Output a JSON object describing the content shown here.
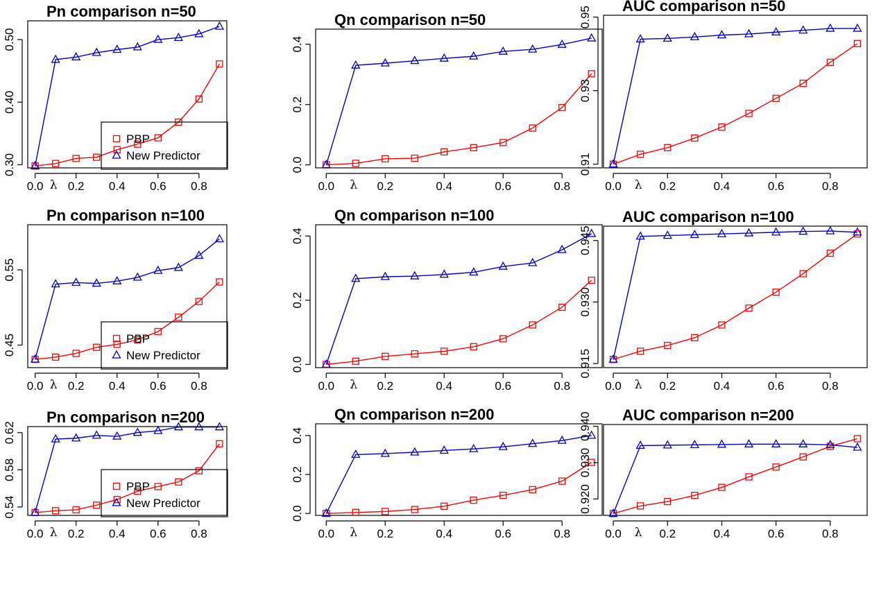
{
  "chart_data": [
    {
      "type": "line",
      "title": "Pn comparison n=50",
      "xlabel": "λ",
      "x": [
        0,
        0.1,
        0.2,
        0.3,
        0.4,
        0.5,
        0.6,
        0.7,
        0.8,
        0.9
      ],
      "ylim": [
        0.295,
        0.53
      ],
      "ytick_labels": [
        "0.30",
        "0.40",
        "0.50"
      ],
      "xtick_labels": [
        "0.0",
        "0.2",
        "0.4",
        "0.6",
        "0.8"
      ],
      "legend": true,
      "series": [
        {
          "name": "PBP",
          "values": [
            0.298,
            0.302,
            0.31,
            0.312,
            0.324,
            0.333,
            0.343,
            0.368,
            0.405,
            0.461
          ]
        },
        {
          "name": "New Predictor",
          "values": [
            0.298,
            0.468,
            0.472,
            0.479,
            0.484,
            0.488,
            0.5,
            0.503,
            0.509,
            0.521
          ]
        }
      ]
    },
    {
      "type": "line",
      "title": "Qn comparison n=50",
      "xlabel": "λ",
      "x": [
        0,
        0.1,
        0.2,
        0.3,
        0.4,
        0.5,
        0.6,
        0.7,
        0.8,
        0.9
      ],
      "ylim": [
        -0.01,
        0.45
      ],
      "ytick_labels": [
        "0.0",
        "0.2",
        "0.4"
      ],
      "xtick_labels": [
        "0.0",
        "0.2",
        "0.4",
        "0.6",
        "0.8"
      ],
      "legend": false,
      "series": [
        {
          "name": "PBP",
          "values": [
            0.0,
            0.005,
            0.02,
            0.022,
            0.043,
            0.057,
            0.074,
            0.122,
            0.19,
            0.302
          ]
        },
        {
          "name": "New Predictor",
          "values": [
            0.0,
            0.33,
            0.337,
            0.345,
            0.353,
            0.36,
            0.376,
            0.383,
            0.399,
            0.42
          ]
        }
      ]
    },
    {
      "type": "line",
      "title": "AUC comparison n=50",
      "xlabel": "λ",
      "x": [
        0,
        0.1,
        0.2,
        0.3,
        0.4,
        0.5,
        0.6,
        0.7,
        0.8,
        0.9
      ],
      "ylim": [
        0.909,
        0.9505
      ],
      "ytick_labels": [
        "0.91",
        "0.93",
        "0.95"
      ],
      "xtick_labels": [
        "0.0",
        "0.2",
        "0.4",
        "0.6",
        "0.8"
      ],
      "legend": false,
      "series": [
        {
          "name": "PBP",
          "values": [
            0.91,
            0.9127,
            0.9145,
            0.9171,
            0.9201,
            0.9238,
            0.9279,
            0.932,
            0.9377,
            0.9428
          ]
        },
        {
          "name": "New Predictor",
          "values": [
            0.91,
            0.944,
            0.9442,
            0.9446,
            0.9451,
            0.9454,
            0.9459,
            0.9464,
            0.9469,
            0.9469
          ]
        }
      ]
    },
    {
      "type": "line",
      "title": "Pn comparison n=100",
      "xlabel": "λ",
      "x": [
        0,
        0.1,
        0.2,
        0.3,
        0.4,
        0.5,
        0.6,
        0.7,
        0.8,
        0.9
      ],
      "ylim": [
        0.42,
        0.61
      ],
      "ytick_labels": [
        "0.45",
        "0.55"
      ],
      "xtick_labels": [
        "0.0",
        "0.2",
        "0.4",
        "0.6",
        "0.8"
      ],
      "legend": true,
      "series": [
        {
          "name": "PBP",
          "values": [
            0.431,
            0.434,
            0.439,
            0.447,
            0.451,
            0.457,
            0.468,
            0.487,
            0.508,
            0.534
          ]
        },
        {
          "name": "New Predictor",
          "values": [
            0.431,
            0.531,
            0.533,
            0.532,
            0.535,
            0.54,
            0.549,
            0.553,
            0.569,
            0.591
          ]
        }
      ]
    },
    {
      "type": "line",
      "title": "Qn comparison n=100",
      "xlabel": "λ",
      "x": [
        0,
        0.1,
        0.2,
        0.3,
        0.4,
        0.5,
        0.6,
        0.7,
        0.8,
        0.9
      ],
      "ylim": [
        -0.01,
        0.435
      ],
      "ytick_labels": [
        "0.0",
        "0.2",
        "0.4"
      ],
      "xtick_labels": [
        "0.0",
        "0.2",
        "0.4",
        "0.6",
        "0.8"
      ],
      "legend": false,
      "series": [
        {
          "name": "PBP",
          "values": [
            0.0,
            0.01,
            0.025,
            0.033,
            0.041,
            0.055,
            0.08,
            0.123,
            0.178,
            0.262
          ]
        },
        {
          "name": "New Predictor",
          "values": [
            0.0,
            0.267,
            0.273,
            0.275,
            0.28,
            0.287,
            0.305,
            0.316,
            0.357,
            0.407
          ]
        }
      ]
    },
    {
      "type": "line",
      "title": "AUC comparison n=100",
      "xlabel": "λ",
      "x": [
        0,
        0.1,
        0.2,
        0.3,
        0.4,
        0.5,
        0.6,
        0.7,
        0.8,
        0.9
      ],
      "ylim": [
        0.914,
        0.9485
      ],
      "ytick_labels": [
        "0.915",
        "0.930",
        "0.945"
      ],
      "xtick_labels": [
        "0.0",
        "0.2",
        "0.4",
        "0.6",
        "0.8"
      ],
      "legend": false,
      "series": [
        {
          "name": "PBP",
          "values": [
            0.916,
            0.918,
            0.9194,
            0.9213,
            0.9244,
            0.9285,
            0.9324,
            0.9369,
            0.9419,
            0.9466
          ]
        },
        {
          "name": "New Predictor",
          "values": [
            0.916,
            0.946,
            0.9462,
            0.9464,
            0.9466,
            0.9468,
            0.947,
            0.9472,
            0.9473,
            0.947
          ]
        }
      ]
    },
    {
      "type": "line",
      "title": "Pn comparison n=200",
      "xlabel": "λ",
      "x": [
        0,
        0.1,
        0.2,
        0.3,
        0.4,
        0.5,
        0.6,
        0.7,
        0.8,
        0.9
      ],
      "ylim": [
        0.531,
        0.6265
      ],
      "ytick_labels": [
        "0.54",
        "0.58",
        "0.62"
      ],
      "xtick_labels": [
        "0.0",
        "0.2",
        "0.4",
        "0.6",
        "0.8"
      ],
      "legend": true,
      "series": [
        {
          "name": "PBP",
          "values": [
            0.534,
            0.536,
            0.537,
            0.542,
            0.548,
            0.557,
            0.562,
            0.567,
            0.579,
            0.608
          ]
        },
        {
          "name": "New Predictor",
          "values": [
            0.534,
            0.613,
            0.614,
            0.617,
            0.616,
            0.62,
            0.622,
            0.626,
            0.626,
            0.626
          ]
        }
      ]
    },
    {
      "type": "line",
      "title": "Qn comparison n=200",
      "xlabel": "λ",
      "x": [
        0,
        0.1,
        0.2,
        0.3,
        0.4,
        0.5,
        0.6,
        0.7,
        0.8,
        0.9
      ],
      "ylim": [
        -0.01,
        0.46
      ],
      "ytick_labels": [
        "0.0",
        "0.2",
        "0.4"
      ],
      "xtick_labels": [
        "0.0",
        "0.2",
        "0.4",
        "0.6",
        "0.8"
      ],
      "legend": false,
      "series": [
        {
          "name": "PBP",
          "values": [
            0.0,
            0.005,
            0.01,
            0.02,
            0.037,
            0.068,
            0.093,
            0.122,
            0.166,
            0.262
          ]
        },
        {
          "name": "New Predictor",
          "values": [
            0.0,
            0.302,
            0.307,
            0.314,
            0.323,
            0.331,
            0.342,
            0.358,
            0.374,
            0.4
          ]
        }
      ]
    },
    {
      "type": "line",
      "title": "AUC comparison n=200",
      "xlabel": "λ",
      "x": [
        0,
        0.1,
        0.2,
        0.3,
        0.4,
        0.5,
        0.6,
        0.7,
        0.8,
        0.9
      ],
      "ylim": [
        0.9155,
        0.9405
      ],
      "ytick_labels": [
        "0.920",
        "0.930",
        "0.940"
      ],
      "xtick_labels": [
        "0.0",
        "0.2",
        "0.4",
        "0.6",
        "0.8"
      ],
      "legend": false,
      "series": [
        {
          "name": "PBP",
          "values": [
            0.916,
            0.9181,
            0.9193,
            0.921,
            0.9232,
            0.9261,
            0.9288,
            0.9316,
            0.9345,
            0.9366
          ]
        },
        {
          "name": "New Predictor",
          "values": [
            0.916,
            0.9347,
            0.9348,
            0.9349,
            0.935,
            0.9351,
            0.9351,
            0.9351,
            0.9349,
            0.9342
          ]
        }
      ]
    }
  ],
  "colors": {
    "PBP": "#ff0000",
    "New Predictor": "#0000cc",
    "axis": "#000000"
  },
  "markers": {
    "PBP": "square-icon",
    "New Predictor": "triangle-icon"
  }
}
